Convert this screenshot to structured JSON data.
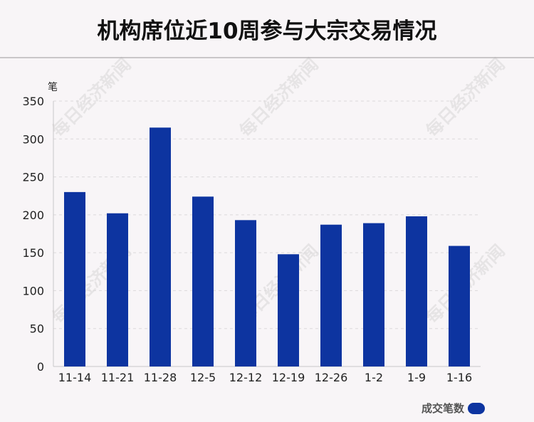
{
  "title": "机构席位近10周参与大宗交易情况",
  "watermark": "每日经济新闻",
  "legend": {
    "label": "成交笔数",
    "color": "#0d34a0"
  },
  "chart_data": {
    "type": "bar",
    "categories": [
      "11-14",
      "11-21",
      "11-28",
      "12-5",
      "12-12",
      "12-19",
      "12-26",
      "1-2",
      "1-9",
      "1-16"
    ],
    "series": [
      {
        "name": "成交笔数",
        "values": [
          230,
          202,
          315,
          224,
          193,
          148,
          187,
          189,
          198,
          159
        ]
      }
    ],
    "ylabel": "笔",
    "ylim": [
      0,
      350
    ],
    "yticks": [
      0,
      50,
      100,
      150,
      200,
      250,
      300,
      350
    ],
    "grid": true,
    "legend_position": "bottom-right",
    "bar_color": "#0d34a0"
  }
}
